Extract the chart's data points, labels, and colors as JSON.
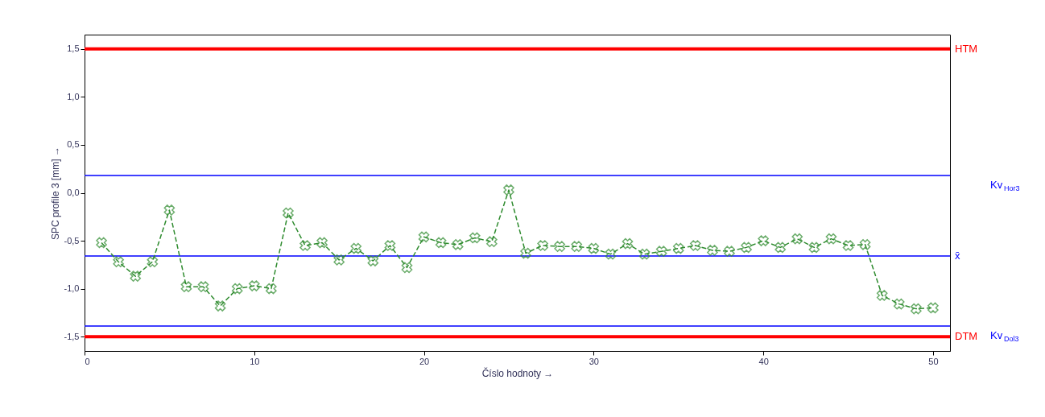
{
  "chart_data": {
    "type": "line",
    "xlabel": "Číslo hodnoty →",
    "ylabel": "SPC profile 3 [mm] →",
    "x": [
      1,
      2,
      3,
      4,
      5,
      6,
      7,
      8,
      9,
      10,
      11,
      12,
      13,
      14,
      15,
      16,
      17,
      18,
      19,
      20,
      21,
      22,
      23,
      24,
      25,
      26,
      27,
      28,
      29,
      30,
      31,
      32,
      33,
      34,
      35,
      36,
      37,
      38,
      39,
      40,
      41,
      42,
      43,
      44,
      45,
      46,
      47,
      48,
      49,
      50
    ],
    "series": [
      {
        "color": "#2e8b2e",
        "values": [
          -0.52,
          -0.72,
          -0.87,
          -0.72,
          -0.18,
          -0.98,
          -0.98,
          -1.18,
          -1.0,
          -0.97,
          -1.0,
          -0.21,
          -0.55,
          -0.52,
          -0.7,
          -0.58,
          -0.71,
          -0.55,
          -0.78,
          -0.46,
          -0.52,
          -0.54,
          -0.47,
          -0.51,
          0.03,
          -0.63,
          -0.55,
          -0.56,
          -0.56,
          -0.58,
          -0.64,
          -0.53,
          -0.64,
          -0.61,
          -0.58,
          -0.55,
          -0.6,
          -0.61,
          -0.57,
          -0.5,
          -0.57,
          -0.48,
          -0.57,
          -0.48,
          -0.55,
          -0.54,
          -1.07,
          -1.16,
          -1.21,
          -1.2
        ]
      }
    ],
    "marker": "cross",
    "line_style": "dashed",
    "grid": false,
    "xlim": [
      0,
      51
    ],
    "xticks": [
      0,
      10,
      20,
      30,
      40,
      50
    ],
    "ylim": [
      -1.65,
      1.65
    ],
    "yticks": [
      {
        "value": -1.5,
        "label": "-1,5"
      },
      {
        "value": -1.0,
        "label": "-1,0"
      },
      {
        "value": -0.5,
        "label": "-0,5"
      },
      {
        "value": 0.0,
        "label": "0,0"
      },
      {
        "value": 0.5,
        "label": "0,5"
      },
      {
        "value": 1.0,
        "label": "1,0"
      },
      {
        "value": 1.5,
        "label": "1,5"
      }
    ],
    "ref_lines": [
      {
        "axis": "y",
        "value": 1.5,
        "label": "HTM",
        "color": "#ff0000"
      },
      {
        "axis": "y",
        "value": 0.18,
        "label": "Kv$_{Hor3}$",
        "color": "#0000ff"
      },
      {
        "axis": "y",
        "value": -0.66,
        "label": "x̄",
        "color": "#0000ff"
      },
      {
        "axis": "y",
        "value": -1.39,
        "label": "Kv$_{Dol3}$",
        "color": "#0000ff"
      },
      {
        "axis": "y",
        "value": -1.5,
        "label": "DTM",
        "color": "#ff0000"
      }
    ]
  }
}
